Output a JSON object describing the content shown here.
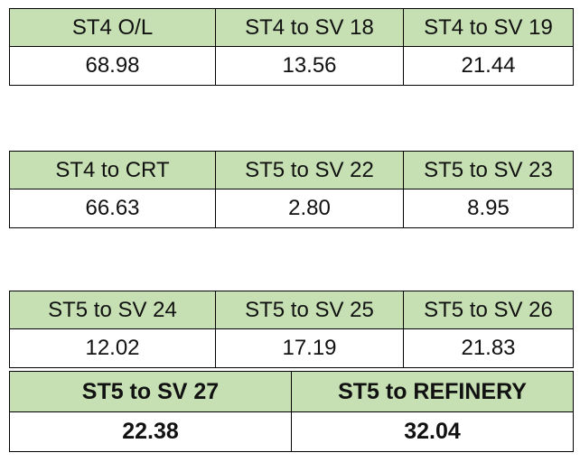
{
  "tables": [
    {
      "headers": [
        "ST4 O/L",
        "ST4 to SV 18",
        "ST4 to SV 19"
      ],
      "values": [
        "68.98",
        "13.56",
        "21.44"
      ]
    },
    {
      "headers": [
        "ST4 to CRT",
        "ST5 to SV 22",
        "ST5 to SV 23"
      ],
      "values": [
        "66.63",
        "2.80",
        "8.95"
      ]
    },
    {
      "headers": [
        "ST5 to SV 24",
        "ST5 to SV 25",
        "ST5 to SV 26"
      ],
      "values": [
        "12.02",
        "17.19",
        "21.83"
      ]
    },
    {
      "headers": [
        "ST5 to SV 27",
        "ST5 to REFINERY"
      ],
      "values": [
        "22.38",
        "32.04"
      ]
    }
  ],
  "colors": {
    "header_fill": "#c6e0b4",
    "border": "#000000",
    "text": "#111111"
  }
}
